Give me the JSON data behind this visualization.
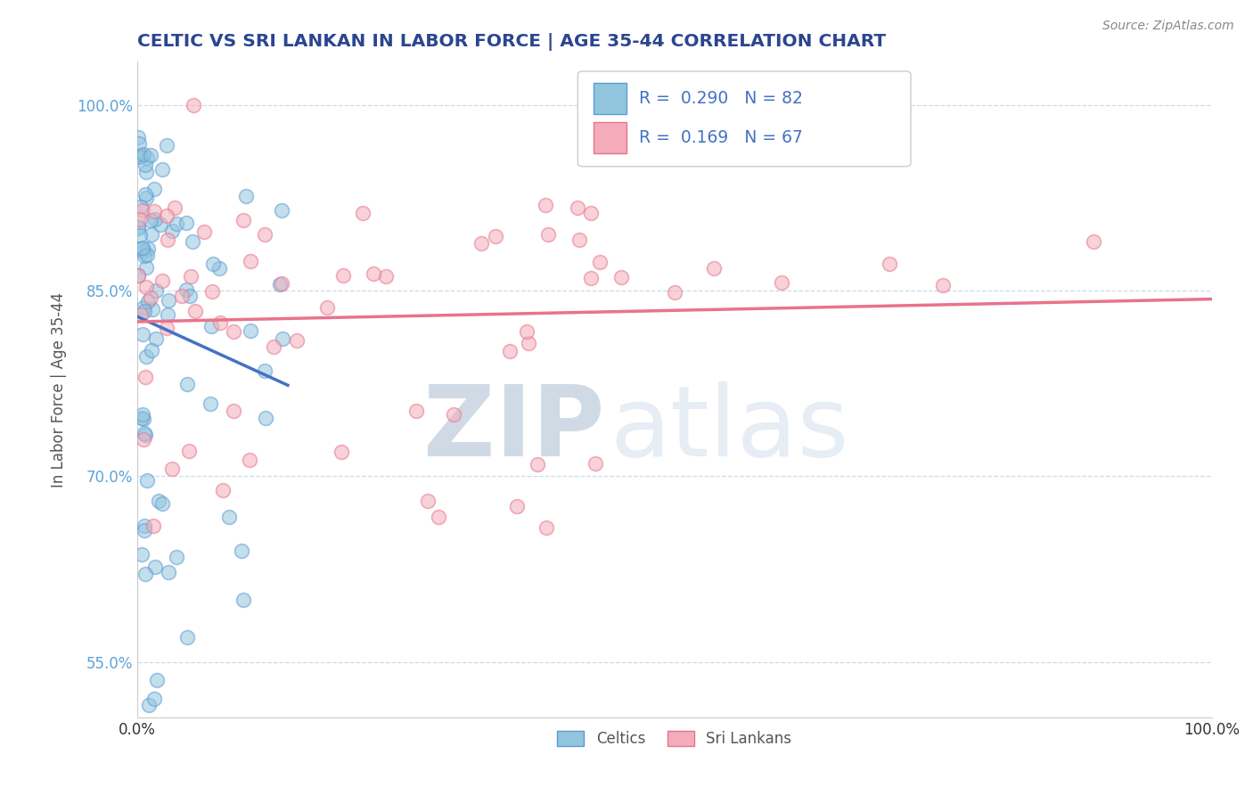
{
  "title": "CELTIC VS SRI LANKAN IN LABOR FORCE | AGE 35-44 CORRELATION CHART",
  "source": "Source: ZipAtlas.com",
  "ylabel": "In Labor Force | Age 35-44",
  "watermark_top": "ZIP",
  "watermark_bot": "atlas",
  "legend_celtics": "Celtics",
  "legend_sri_lankans": "Sri Lankans",
  "R_celtics": 0.29,
  "N_celtics": 82,
  "R_sri_lankans": 0.169,
  "N_sri_lankans": 67,
  "xlim": [
    0.0,
    1.0
  ],
  "ylim": [
    0.505,
    1.035
  ],
  "yticks": [
    0.55,
    0.7,
    0.85,
    1.0
  ],
  "ytick_labels": [
    "55.0%",
    "70.0%",
    "85.0%",
    "100.0%"
  ],
  "xticks": [
    0.0,
    1.0
  ],
  "xtick_labels": [
    "0.0%",
    "100.0%"
  ],
  "color_celtics": "#92C5DE",
  "color_celtics_edge": "#5B9BD5",
  "color_sri_lankans": "#F4ACBB",
  "color_sri_lankans_edge": "#E8738A",
  "line_celtics": "#4472C4",
  "line_sri_lankans": "#E8738A",
  "grid_color": "#B8D4E8",
  "title_color": "#2B4590",
  "axis_label_color": "#555555",
  "tick_color_y": "#5BA3D9",
  "tick_color_x": "#333333",
  "watermark_color": "#C8D8E8",
  "source_color": "#888888",
  "background_color": "#FFFFFF",
  "legend_R_color": "#4472C4",
  "legend_border_color": "#CCCCCC"
}
